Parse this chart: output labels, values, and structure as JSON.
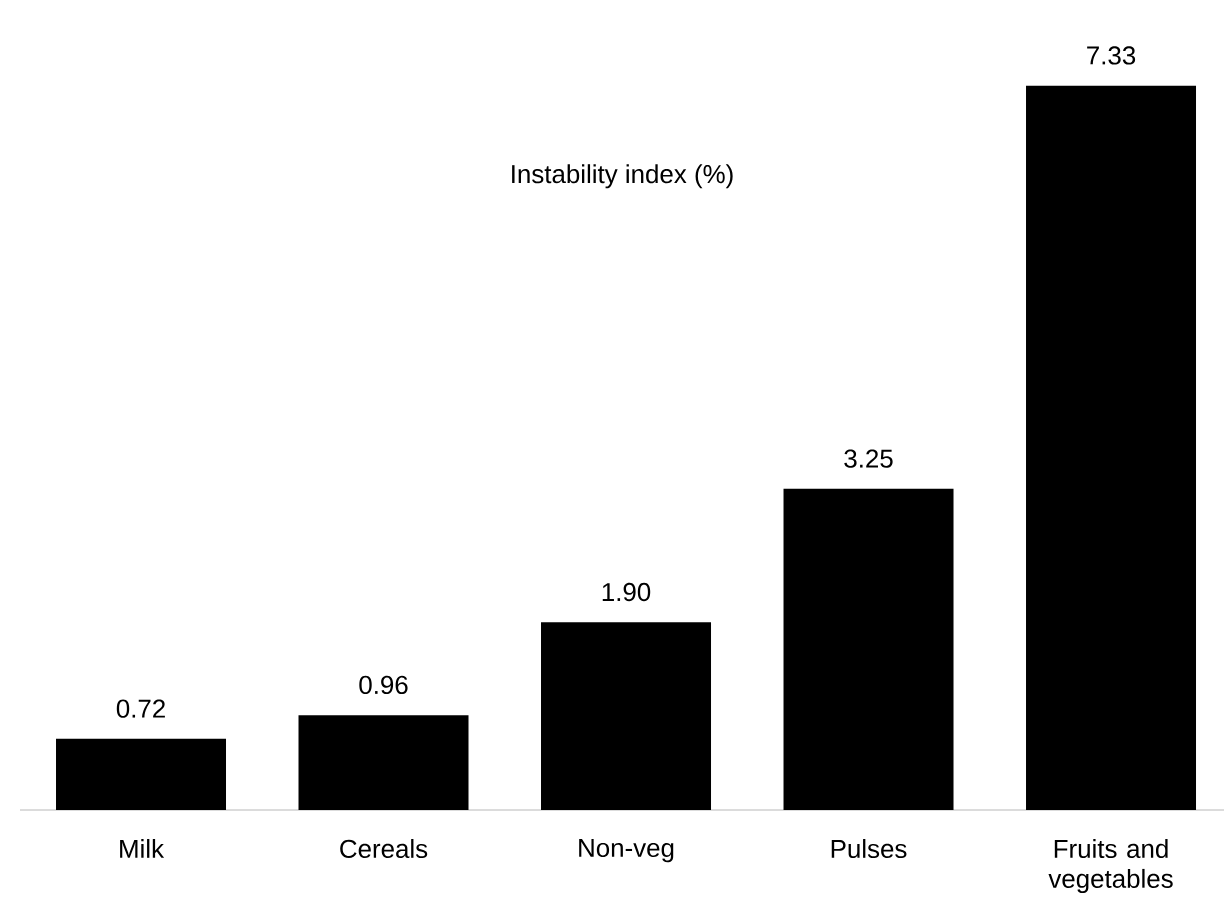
{
  "chart_data": {
    "type": "bar",
    "title": "Instability index (%)",
    "categories": [
      "Milk",
      "Cereals",
      "Non-veg",
      "Pulses",
      "Fruits and vegetables"
    ],
    "values": [
      0.72,
      0.96,
      1.9,
      3.25,
      7.33
    ],
    "value_labels": [
      "0.72",
      "0.96",
      "1.90",
      "3.25",
      "7.33"
    ],
    "color": "#000000"
  }
}
